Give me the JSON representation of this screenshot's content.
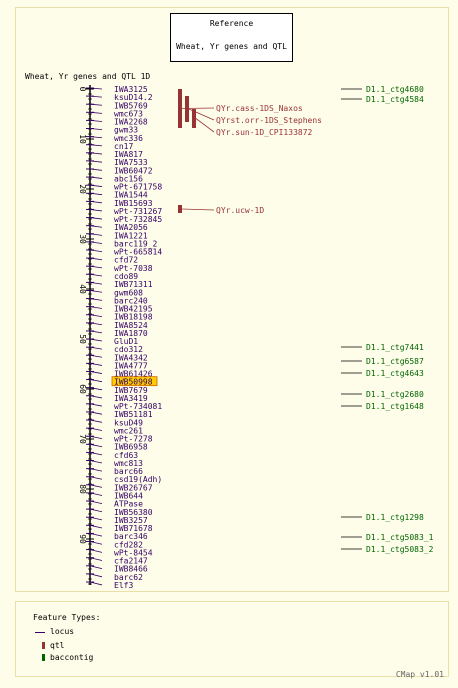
{
  "reference": {
    "title": "Reference",
    "map_set": "Wheat, Yr genes and QTL"
  },
  "map_title": "Wheat, Yr genes and QTL 1D",
  "scale": {
    "ticks": [
      "0",
      "10",
      "20",
      "30",
      "40",
      "50",
      "60",
      "70",
      "80",
      "90"
    ]
  },
  "markers": [
    "IWA3125",
    "ksuD14.2",
    "IWB5769",
    "wmc673",
    "IWA2268",
    "gwm33",
    "wmc336",
    "cn17",
    "IWA817",
    "IWA7533",
    "IWB60472",
    "abc156",
    "wPt-671758",
    "IWA1544",
    "IWB15693",
    "wPt-731267",
    "wPt-732845",
    "IWA2056",
    "IWA1221",
    "barc119_2",
    "wPt-665814",
    "cfd72",
    "wPt-7038",
    "cdo89",
    "IWB71311",
    "gwm608",
    "barc240",
    "IWB42195",
    "IWB18198",
    "IWA8524",
    "IWA1870",
    "GluD1",
    "cdo312",
    "IWA4342",
    "IWA4777",
    "IWB61426",
    "IWB50998",
    "IWB7679",
    "IWA3419",
    "wPt-734081",
    "IWB51181",
    "ksuD49",
    "wmc261",
    "wPt-7278",
    "IWB6958",
    "cfd63",
    "wmc813",
    "barc66",
    "csd19(Adh)",
    "IWB26767",
    "IWB644",
    "ATPase",
    "IWB56380",
    "IWB3257",
    "IWB71678",
    "barc346",
    "cfd282",
    "wPt-8454",
    "cfa2147",
    "IWB8466",
    "barc62",
    "Elf3"
  ],
  "highlighted_marker": "IWB50998",
  "qtls": [
    "QYr.cass-1DS_Naxos",
    "QYrst.orr-1DS_Stephens",
    "QYr.sun-1D_CPI133872",
    "QYr.ucw-1D"
  ],
  "contigs": [
    "D1.1_ctg4680",
    "D1.1_ctg4584",
    "D1.1_ctg7441",
    "D1.1_ctg6587",
    "D1.1_ctg4643",
    "D1.1_ctg2680",
    "D1.1_ctg1648",
    "D1.1_ctg1298",
    "D1.1_ctg5083_1",
    "D1.1_ctg5083_2"
  ],
  "legend": {
    "title": "Feature Types:",
    "items": [
      {
        "label": "locus",
        "color": "#330066"
      },
      {
        "label": "qtl",
        "color": "#993333"
      },
      {
        "label": "baccontig",
        "color": "#006600"
      }
    ]
  },
  "version": "CMap v1.01",
  "colors": {
    "background": "#fefdea",
    "marker": "#330066",
    "qtl": "#993333",
    "contig": "#006600",
    "highlight": "#ffcc00"
  }
}
